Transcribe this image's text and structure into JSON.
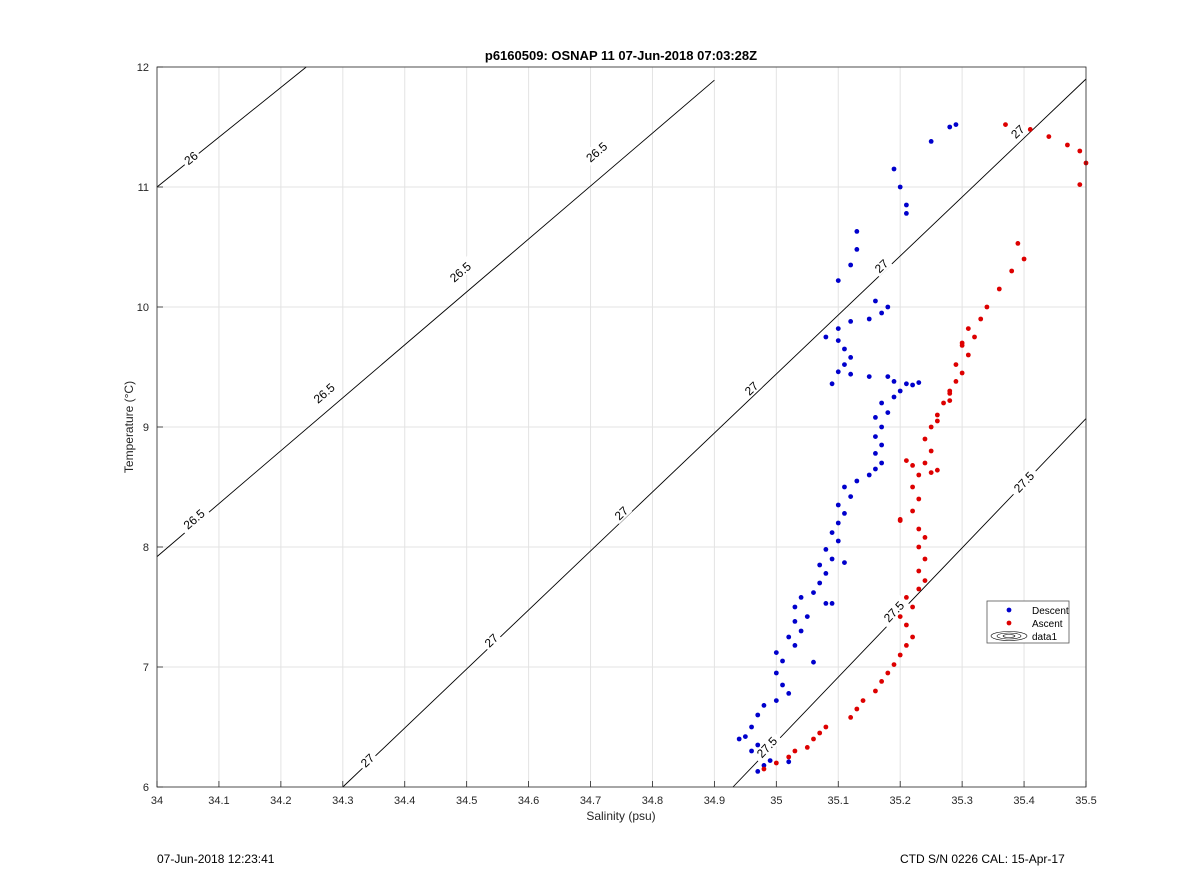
{
  "chart_data": {
    "type": "scatter",
    "title": "p6160509: OSNAP 11 07-Jun-2018 07:03:28Z",
    "xlabel": "Salinity (psu)",
    "ylabel": "Temperature (°C)",
    "xlim": [
      34,
      35.5
    ],
    "ylim": [
      6,
      12
    ],
    "xticks": [
      "34",
      "34.1",
      "34.2",
      "34.3",
      "34.4",
      "34.5",
      "34.6",
      "34.7",
      "34.8",
      "34.9",
      "35",
      "35.1",
      "35.2",
      "35.3",
      "35.4",
      "35.5"
    ],
    "yticks": [
      "6",
      "7",
      "8",
      "9",
      "10",
      "11",
      "12"
    ],
    "grid": true,
    "legend_position": "lower-right",
    "legend": [
      "Descent",
      "Ascent",
      "data1"
    ],
    "colors": {
      "descent": "#0000cc",
      "ascent": "#dd0000",
      "contour": "#000000",
      "grid": "#e3e3e3"
    },
    "density_contours": [
      {
        "label": "26",
        "points": [
          [
            34.0,
            11.0
          ],
          [
            34.241,
            12.0
          ]
        ]
      },
      {
        "label": "26.5",
        "points": [
          [
            34.0,
            7.92
          ],
          [
            34.9,
            11.89
          ]
        ]
      },
      {
        "label": "27",
        "points": [
          [
            34.3,
            6.0
          ],
          [
            35.5,
            11.9
          ]
        ]
      },
      {
        "label": "27.5",
        "points": [
          [
            34.93,
            6.0
          ],
          [
            35.5,
            9.07
          ]
        ]
      }
    ],
    "contour_labels": [
      {
        "text": "26",
        "x": 34.055,
        "y": 11.24
      },
      {
        "text": "26.5",
        "x": 34.06,
        "y": 8.23
      },
      {
        "text": "26.5",
        "x": 34.27,
        "y": 9.28
      },
      {
        "text": "26.5",
        "x": 34.49,
        "y": 10.29
      },
      {
        "text": "26.5",
        "x": 34.71,
        "y": 11.29
      },
      {
        "text": "27",
        "x": 34.34,
        "y": 6.22
      },
      {
        "text": "27",
        "x": 34.54,
        "y": 7.22
      },
      {
        "text": "27",
        "x": 34.75,
        "y": 8.28
      },
      {
        "text": "27",
        "x": 34.96,
        "y": 9.32
      },
      {
        "text": "27",
        "x": 35.17,
        "y": 10.34
      },
      {
        "text": "27",
        "x": 35.39,
        "y": 11.46
      },
      {
        "text": "27.5",
        "x": 34.985,
        "y": 6.33
      },
      {
        "text": "27.5",
        "x": 35.19,
        "y": 7.46
      },
      {
        "text": "27.5",
        "x": 35.4,
        "y": 8.54
      }
    ],
    "series": [
      {
        "name": "Descent",
        "points": [
          [
            34.97,
            6.13
          ],
          [
            34.98,
            6.18
          ],
          [
            34.99,
            6.22
          ],
          [
            35.02,
            6.21
          ],
          [
            34.96,
            6.3
          ],
          [
            34.97,
            6.35
          ],
          [
            34.95,
            6.42
          ],
          [
            34.94,
            6.4
          ],
          [
            34.96,
            6.5
          ],
          [
            34.97,
            6.6
          ],
          [
            34.98,
            6.68
          ],
          [
            35.0,
            6.72
          ],
          [
            35.02,
            6.78
          ],
          [
            35.01,
            6.85
          ],
          [
            35.0,
            6.95
          ],
          [
            35.01,
            7.05
          ],
          [
            35.0,
            7.12
          ],
          [
            35.03,
            7.18
          ],
          [
            35.02,
            7.25
          ],
          [
            35.04,
            7.3
          ],
          [
            35.03,
            7.38
          ],
          [
            35.05,
            7.42
          ],
          [
            35.03,
            7.5
          ],
          [
            35.04,
            7.58
          ],
          [
            35.06,
            7.62
          ],
          [
            35.07,
            7.7
          ],
          [
            35.08,
            7.78
          ],
          [
            35.07,
            7.85
          ],
          [
            35.09,
            7.9
          ],
          [
            35.08,
            7.98
          ],
          [
            35.1,
            8.05
          ],
          [
            35.09,
            8.12
          ],
          [
            35.1,
            8.2
          ],
          [
            35.11,
            8.28
          ],
          [
            35.1,
            8.35
          ],
          [
            35.12,
            8.42
          ],
          [
            35.11,
            8.5
          ],
          [
            35.13,
            8.55
          ],
          [
            35.15,
            8.6
          ],
          [
            35.16,
            8.65
          ],
          [
            35.17,
            8.7
          ],
          [
            35.16,
            8.78
          ],
          [
            35.17,
            8.85
          ],
          [
            35.16,
            8.92
          ],
          [
            35.17,
            9.0
          ],
          [
            35.16,
            9.08
          ],
          [
            35.18,
            9.12
          ],
          [
            35.17,
            9.2
          ],
          [
            35.19,
            9.25
          ],
          [
            35.2,
            9.3
          ],
          [
            35.19,
            9.38
          ],
          [
            35.21,
            9.36
          ],
          [
            35.22,
            9.35
          ],
          [
            35.23,
            9.37
          ],
          [
            35.18,
            9.42
          ],
          [
            35.15,
            9.42
          ],
          [
            35.12,
            9.44
          ],
          [
            35.1,
            9.46
          ],
          [
            35.11,
            9.52
          ],
          [
            35.12,
            9.58
          ],
          [
            35.11,
            9.65
          ],
          [
            35.1,
            9.72
          ],
          [
            35.08,
            9.75
          ],
          [
            35.1,
            9.82
          ],
          [
            35.12,
            9.88
          ],
          [
            35.15,
            9.9
          ],
          [
            35.17,
            9.95
          ],
          [
            35.16,
            10.05
          ],
          [
            35.18,
            10.0
          ],
          [
            35.1,
            10.22
          ],
          [
            35.12,
            10.35
          ],
          [
            35.13,
            10.48
          ],
          [
            35.13,
            10.63
          ],
          [
            35.21,
            10.78
          ],
          [
            35.21,
            10.85
          ],
          [
            35.2,
            11.0
          ],
          [
            35.19,
            11.15
          ],
          [
            35.25,
            11.38
          ],
          [
            35.28,
            11.5
          ],
          [
            35.29,
            11.52
          ],
          [
            35.06,
            7.04
          ],
          [
            35.08,
            7.53
          ],
          [
            35.09,
            7.53
          ],
          [
            35.11,
            7.87
          ],
          [
            35.09,
            9.36
          ]
        ]
      },
      {
        "name": "Ascent",
        "points": [
          [
            34.98,
            6.15
          ],
          [
            35.0,
            6.2
          ],
          [
            35.02,
            6.25
          ],
          [
            35.03,
            6.3
          ],
          [
            35.05,
            6.33
          ],
          [
            35.06,
            6.4
          ],
          [
            35.07,
            6.45
          ],
          [
            35.08,
            6.5
          ],
          [
            35.12,
            6.58
          ],
          [
            35.13,
            6.65
          ],
          [
            35.14,
            6.72
          ],
          [
            35.16,
            6.8
          ],
          [
            35.17,
            6.88
          ],
          [
            35.18,
            6.95
          ],
          [
            35.19,
            7.02
          ],
          [
            35.2,
            7.1
          ],
          [
            35.21,
            7.18
          ],
          [
            35.22,
            7.25
          ],
          [
            35.21,
            7.35
          ],
          [
            35.2,
            7.42
          ],
          [
            35.22,
            7.5
          ],
          [
            35.21,
            7.58
          ],
          [
            35.23,
            7.65
          ],
          [
            35.24,
            7.72
          ],
          [
            35.23,
            7.8
          ],
          [
            35.24,
            7.9
          ],
          [
            35.23,
            8.0
          ],
          [
            35.24,
            8.08
          ],
          [
            35.23,
            8.15
          ],
          [
            35.2,
            8.22
          ],
          [
            35.22,
            8.3
          ],
          [
            35.23,
            8.4
          ],
          [
            35.22,
            8.5
          ],
          [
            35.23,
            8.6
          ],
          [
            35.22,
            8.68
          ],
          [
            35.21,
            8.72
          ],
          [
            35.24,
            8.7
          ],
          [
            35.26,
            8.64
          ],
          [
            35.25,
            8.8
          ],
          [
            35.24,
            8.9
          ],
          [
            35.25,
            9.0
          ],
          [
            35.26,
            9.1
          ],
          [
            35.27,
            9.2
          ],
          [
            35.28,
            9.3
          ],
          [
            35.29,
            9.38
          ],
          [
            35.3,
            9.45
          ],
          [
            35.29,
            9.52
          ],
          [
            35.31,
            9.6
          ],
          [
            35.3,
            9.68
          ],
          [
            35.32,
            9.75
          ],
          [
            35.31,
            9.82
          ],
          [
            35.33,
            9.9
          ],
          [
            35.34,
            10.0
          ],
          [
            35.36,
            10.15
          ],
          [
            35.38,
            10.3
          ],
          [
            35.4,
            10.4
          ],
          [
            35.39,
            10.53
          ],
          [
            35.37,
            11.52
          ],
          [
            35.41,
            11.48
          ],
          [
            35.44,
            11.42
          ],
          [
            35.47,
            11.35
          ],
          [
            35.49,
            11.3
          ],
          [
            35.5,
            11.2
          ],
          [
            35.49,
            11.02
          ],
          [
            35.28,
            9.22
          ],
          [
            35.26,
            9.05
          ],
          [
            35.25,
            8.62
          ],
          [
            35.2,
            8.23
          ],
          [
            35.28,
            9.28
          ],
          [
            35.3,
            9.7
          ]
        ]
      },
      {
        "name": "data1",
        "points": []
      }
    ]
  },
  "footer": {
    "left": "07-Jun-2018 12:23:41",
    "right": "CTD S/N 0226  CAL: 15-Apr-17"
  }
}
